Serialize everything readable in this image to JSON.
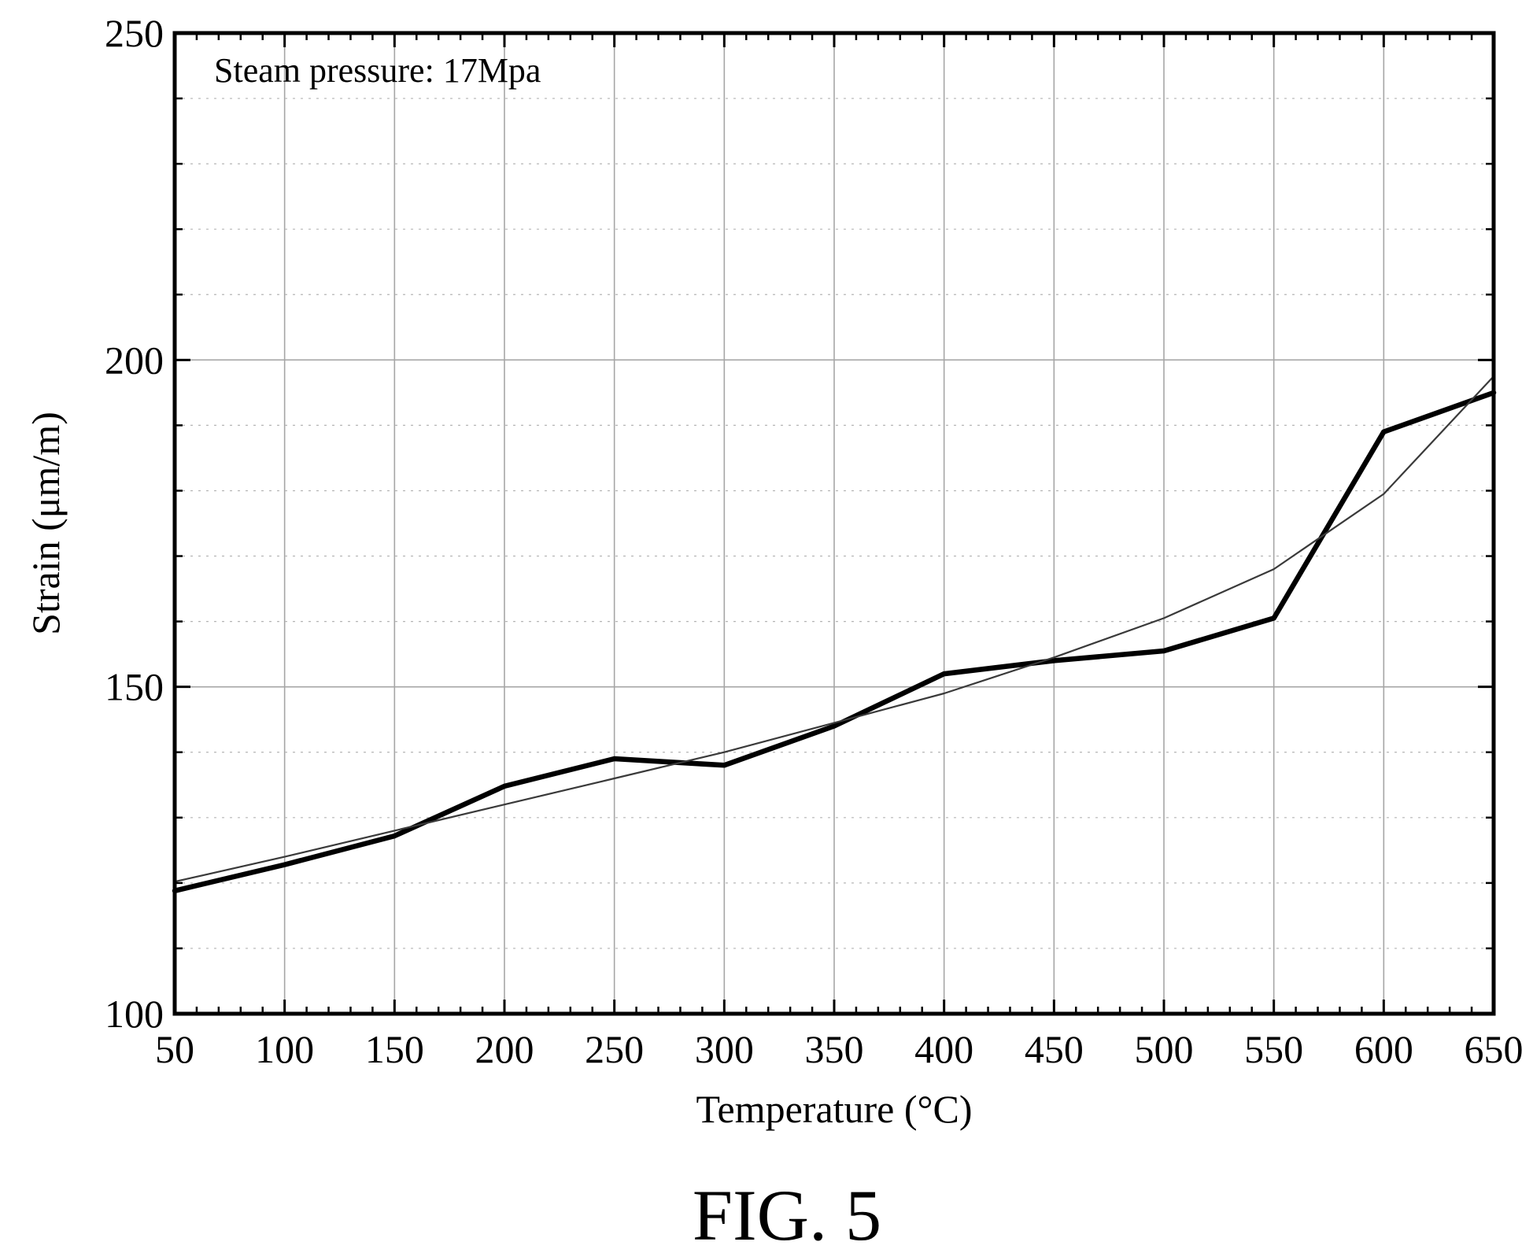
{
  "chart_data": {
    "type": "line",
    "annotation": "Steam pressure: 17Mpa",
    "xlabel": "Temperature (°C)",
    "ylabel": "Strain (μm/m)",
    "xlim": [
      50,
      650
    ],
    "ylim": [
      100,
      250
    ],
    "x_ticks": [
      "50",
      "100",
      "150",
      "200",
      "250",
      "300",
      "350",
      "400",
      "450",
      "500",
      "550",
      "600",
      "650"
    ],
    "y_ticks": [
      "100",
      "150",
      "200",
      "250"
    ],
    "grid": true,
    "series": [
      {
        "style": "thick",
        "x": [
          50,
          100,
          150,
          200,
          250,
          300,
          350,
          400,
          450,
          500,
          550,
          600,
          650
        ],
        "y": [
          118.8,
          122.8,
          127.2,
          134.8,
          139.0,
          138.0,
          144.0,
          152.0,
          154.0,
          155.5,
          160.5,
          189.0,
          195.0
        ]
      },
      {
        "style": "thin",
        "x": [
          50,
          100,
          150,
          200,
          250,
          300,
          350,
          400,
          450,
          500,
          550,
          600,
          650
        ],
        "y": [
          120.2,
          124.0,
          128.0,
          132.0,
          136.0,
          140.0,
          144.5,
          149.0,
          154.5,
          160.5,
          168.0,
          179.5,
          197.5
        ]
      }
    ]
  },
  "caption": "FIG. 5"
}
